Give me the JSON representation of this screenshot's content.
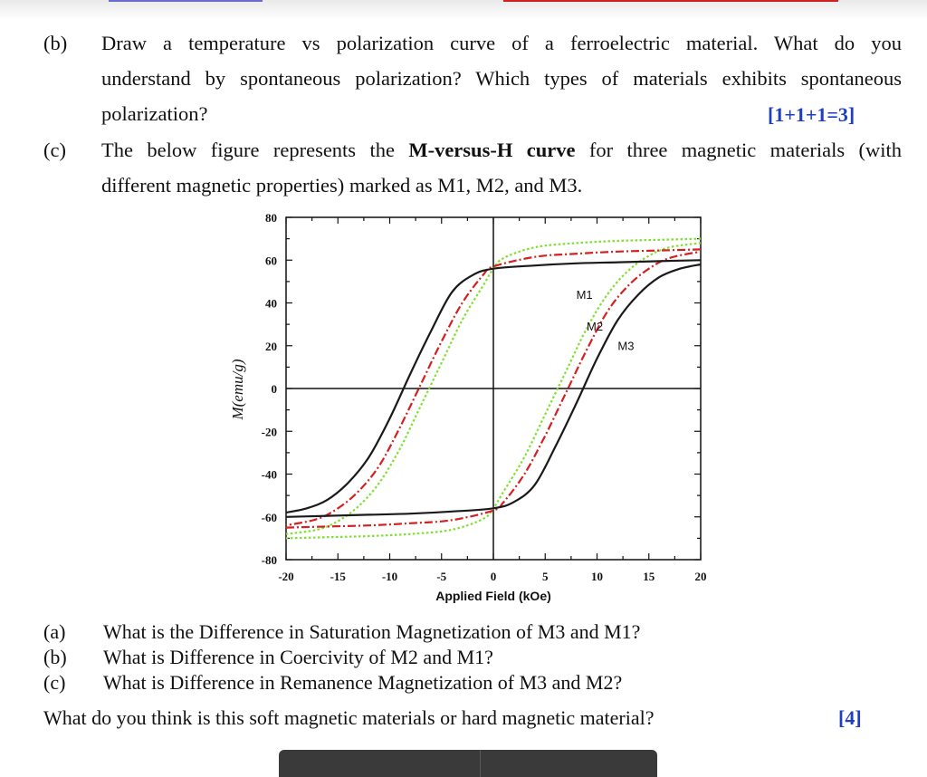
{
  "question_b": {
    "label": "(b)",
    "line1": "Draw a temperature vs polarization curve of a ferroelectric material. What do you",
    "line2": "understand by spontaneous polarization? Which types of materials exhibits spontaneous",
    "line3": "polarization?",
    "marks": "[1+1+1=3]"
  },
  "question_c": {
    "label": "(c)",
    "line1_pre": "The below figure represents the ",
    "line1_bold": "M-versus-H curve",
    "line1_post": " for three magnetic materials (with",
    "line2": "different magnetic properties) marked as M1, M2, and M3."
  },
  "chart_data": {
    "type": "line",
    "xlabel": "Applied Field (kOe)",
    "ylabel": "M(emu/g)",
    "xlim": [
      -20,
      20
    ],
    "ylim": [
      -80,
      80
    ],
    "xticks": [
      -20,
      -15,
      -10,
      -5,
      0,
      5,
      10,
      15,
      20
    ],
    "yticks": [
      80,
      60,
      40,
      20,
      0,
      -20,
      -40,
      -60,
      -80
    ],
    "grid": false,
    "series": [
      {
        "name": "M1",
        "color": "#1a1a1a",
        "style": "solid",
        "descending": {
          "x": [
            20,
            16,
            12,
            8,
            4,
            0,
            -2,
            -4,
            -6,
            -8,
            -10,
            -12,
            -14,
            -16,
            -18,
            -20
          ],
          "y": [
            60,
            59.5,
            59,
            58.5,
            57.5,
            56,
            53,
            45,
            27,
            7,
            -14,
            -32,
            -44,
            -52,
            -56,
            -58
          ]
        },
        "ascending": {
          "x": [
            -20,
            -16,
            -12,
            -8,
            -4,
            0,
            2,
            4,
            6,
            8,
            10,
            12,
            14,
            16,
            18,
            20
          ],
          "y": [
            -60,
            -59.5,
            -59,
            -58.5,
            -57.5,
            -56,
            -53,
            -45,
            -27,
            -7,
            14,
            32,
            44,
            52,
            56,
            58
          ]
        }
      },
      {
        "name": "M2",
        "color": "#d42020",
        "style": "dashdot",
        "descending": {
          "x": [
            20,
            16,
            12,
            8,
            4,
            0,
            -1,
            -3,
            -5,
            -7,
            -9,
            -11,
            -13,
            -15,
            -17,
            -20
          ],
          "y": [
            65,
            64.5,
            64,
            63,
            61.5,
            57,
            53,
            40,
            22,
            2,
            -18,
            -36,
            -48,
            -56,
            -61,
            -64
          ]
        },
        "ascending": {
          "x": [
            -20,
            -16,
            -12,
            -8,
            -4,
            0,
            1,
            3,
            5,
            7,
            9,
            11,
            13,
            15,
            17,
            20
          ],
          "y": [
            -65,
            -64.5,
            -64,
            -63,
            -61.5,
            -57,
            -53,
            -40,
            -22,
            -2,
            18,
            36,
            48,
            56,
            61,
            64
          ]
        }
      },
      {
        "name": "M3",
        "color": "#7fe030",
        "style": "dotted",
        "descending": {
          "x": [
            20,
            16,
            12,
            8,
            4,
            1,
            0,
            -1,
            -3,
            -5,
            -7,
            -9,
            -11,
            -13,
            -15,
            -17,
            -20
          ],
          "y": [
            70,
            69.5,
            69,
            68,
            66,
            61,
            56,
            48,
            32,
            12,
            -8,
            -28,
            -44,
            -55,
            -62,
            -66,
            -68
          ]
        },
        "ascending": {
          "x": [
            -20,
            -16,
            -12,
            -8,
            -4,
            -1,
            0,
            1,
            3,
            5,
            7,
            9,
            11,
            13,
            15,
            17,
            20
          ],
          "y": [
            -70,
            -69.5,
            -69,
            -68,
            -66,
            -61,
            -56,
            -48,
            -32,
            -12,
            8,
            28,
            44,
            55,
            62,
            66,
            68
          ]
        }
      }
    ],
    "annotations": [
      {
        "text": "M1",
        "x": 8,
        "y": 42
      },
      {
        "text": "M2",
        "x": 9,
        "y": 27
      },
      {
        "text": "M3",
        "x": 12,
        "y": 18
      }
    ]
  },
  "sub_questions": [
    {
      "label": "(a)",
      "text": "What is the Difference in Saturation Magnetization of M3 and M1?"
    },
    {
      "label": "(b)",
      "text": "What is Difference in Coercivity of M2 and M1?"
    },
    {
      "label": "(c)",
      "text": "What is Difference in Remanence Magnetization of M3 and M2?"
    }
  ],
  "final_question": {
    "text": "What do you think is this soft magnetic materials or hard magnetic material?",
    "marks": "[4]"
  }
}
